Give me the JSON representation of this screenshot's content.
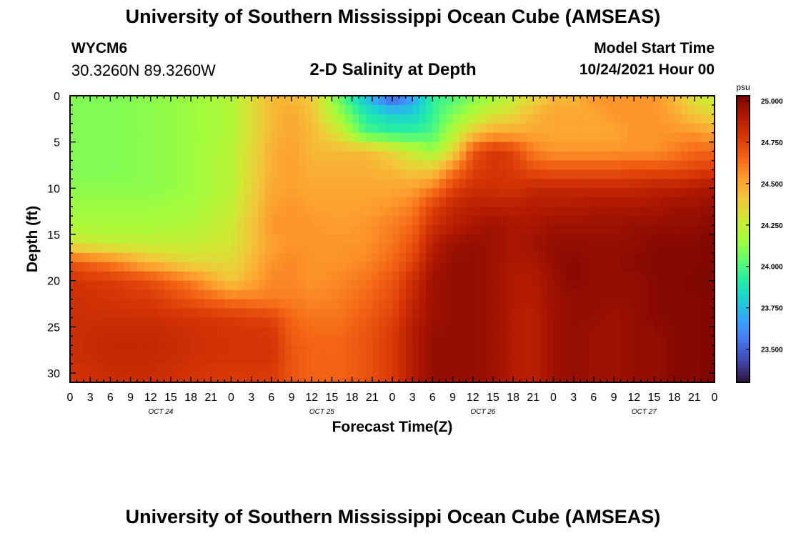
{
  "header": {
    "title": "University of Southern Mississippi Ocean Cube (AMSEAS)",
    "station": "WYCM6",
    "coordinates": "30.3260N  89.3260W",
    "plot_title": "2-D Salinity at Depth",
    "model_start_label": "Model Start Time",
    "model_start_value": "10/24/2021 Hour 00"
  },
  "footer": {
    "title": "University of Southern Mississippi Ocean Cube (AMSEAS)"
  },
  "chart_data": {
    "type": "heatmap",
    "title": "2-D Salinity at Depth",
    "xlabel": "Forecast Time(Z)",
    "ylabel": "Depth (ft)",
    "x_hours_range": [
      0,
      96
    ],
    "y_range": [
      0,
      31
    ],
    "y_ticks": [
      0,
      5,
      10,
      15,
      20,
      25,
      30
    ],
    "x_tick_labels": [
      "0",
      "3",
      "6",
      "9",
      "12",
      "15",
      "18",
      "21",
      "0",
      "3",
      "6",
      "9",
      "12",
      "15",
      "18",
      "21",
      "0",
      "3",
      "6",
      "9",
      "12",
      "15",
      "18",
      "21",
      "0",
      "3",
      "6",
      "9",
      "12",
      "15",
      "18",
      "21",
      "0"
    ],
    "day_labels": [
      "OCT 24",
      "OCT 25",
      "OCT 26",
      "OCT 27"
    ],
    "colorbar": {
      "unit": "psu",
      "min": 23.3,
      "max": 25.03,
      "tick_labels": [
        "25.000",
        "24.750",
        "24.500",
        "24.250",
        "24.000",
        "23.750",
        "23.500"
      ],
      "tick_values": [
        25.0,
        24.75,
        24.5,
        24.25,
        24.0,
        23.75,
        23.5
      ],
      "colormap": [
        "#30123b",
        "#4145ab",
        "#4675ed",
        "#39a2fc",
        "#1bcfd4",
        "#24eca6",
        "#61fc6c",
        "#a4fc3b",
        "#d1e834",
        "#f3c63a",
        "#fe9b2d",
        "#f36315",
        "#d93806",
        "#b11901",
        "#7a0402"
      ]
    },
    "time_points_hours": [
      0,
      6,
      12,
      18,
      24,
      30,
      33,
      36,
      40,
      44,
      48,
      51,
      54,
      57,
      60,
      63,
      66,
      69,
      72,
      75,
      78,
      81,
      84,
      87,
      90,
      93,
      96
    ],
    "depth_points_ft": [
      0,
      2,
      4,
      6,
      8,
      10,
      12,
      14,
      16,
      18,
      20,
      22,
      24,
      26,
      28,
      30,
      31
    ],
    "salinity_psu": [
      [
        24.1,
        24.1,
        24.12,
        24.15,
        24.2,
        24.45,
        24.45,
        24.4,
        24.05,
        23.75,
        23.45,
        23.65,
        23.95,
        24.0,
        24.1,
        24.15,
        24.25,
        24.35,
        24.45,
        24.45,
        24.55,
        24.55,
        24.55,
        24.55,
        24.45,
        24.3,
        24.25
      ],
      [
        24.1,
        24.1,
        24.12,
        24.15,
        24.2,
        24.45,
        24.5,
        24.42,
        24.15,
        23.9,
        23.8,
        23.8,
        23.95,
        24.1,
        24.2,
        24.3,
        24.35,
        24.45,
        24.5,
        24.5,
        24.5,
        24.55,
        24.55,
        24.55,
        24.5,
        24.4,
        24.35
      ],
      [
        24.1,
        24.1,
        24.12,
        24.15,
        24.2,
        24.45,
        24.5,
        24.45,
        24.3,
        24.0,
        23.95,
        23.95,
        24.0,
        24.2,
        24.4,
        24.5,
        24.5,
        24.5,
        24.5,
        24.5,
        24.5,
        24.5,
        24.55,
        24.55,
        24.55,
        24.55,
        24.5
      ],
      [
        24.1,
        24.1,
        24.12,
        24.15,
        24.22,
        24.48,
        24.52,
        24.45,
        24.45,
        24.45,
        24.35,
        24.25,
        24.15,
        24.35,
        24.7,
        24.8,
        24.75,
        24.6,
        24.55,
        24.55,
        24.55,
        24.55,
        24.55,
        24.55,
        24.6,
        24.65,
        24.65
      ],
      [
        24.1,
        24.1,
        24.12,
        24.15,
        24.22,
        24.48,
        24.52,
        24.48,
        24.48,
        24.48,
        24.45,
        24.4,
        24.4,
        24.6,
        24.75,
        24.8,
        24.78,
        24.72,
        24.7,
        24.7,
        24.7,
        24.7,
        24.72,
        24.72,
        24.72,
        24.75,
        24.78
      ],
      [
        24.12,
        24.12,
        24.12,
        24.15,
        24.22,
        24.5,
        24.52,
        24.5,
        24.5,
        24.5,
        24.5,
        24.52,
        24.6,
        24.75,
        24.82,
        24.82,
        24.8,
        24.85,
        24.85,
        24.85,
        24.85,
        24.85,
        24.85,
        24.88,
        24.88,
        24.9,
        24.92
      ],
      [
        24.15,
        24.15,
        24.15,
        24.17,
        24.25,
        24.52,
        24.55,
        24.52,
        24.52,
        24.52,
        24.55,
        24.6,
        24.75,
        24.85,
        24.88,
        24.88,
        24.88,
        24.9,
        24.9,
        24.9,
        24.92,
        24.92,
        24.92,
        24.92,
        24.95,
        24.95,
        24.97
      ],
      [
        24.18,
        24.18,
        24.18,
        24.2,
        24.28,
        24.55,
        24.55,
        24.55,
        24.52,
        24.55,
        24.6,
        24.65,
        24.82,
        24.88,
        24.92,
        24.95,
        24.92,
        24.92,
        24.95,
        24.95,
        24.95,
        24.95,
        24.97,
        24.97,
        24.97,
        24.97,
        25.0
      ],
      [
        24.3,
        24.25,
        24.25,
        24.25,
        24.3,
        24.52,
        24.55,
        24.55,
        24.55,
        24.55,
        24.62,
        24.7,
        24.88,
        24.95,
        24.97,
        24.95,
        24.92,
        24.95,
        24.97,
        24.97,
        24.97,
        24.97,
        24.97,
        25.0,
        25.0,
        25.0,
        25.02
      ],
      [
        24.7,
        24.6,
        24.45,
        24.35,
        24.35,
        24.55,
        24.58,
        24.55,
        24.55,
        24.58,
        24.65,
        24.75,
        24.92,
        24.97,
        24.97,
        24.95,
        24.92,
        24.92,
        24.97,
        25.0,
        24.97,
        24.97,
        25.0,
        25.0,
        25.0,
        25.0,
        25.02
      ],
      [
        24.8,
        24.78,
        24.72,
        24.6,
        24.4,
        24.58,
        24.58,
        24.55,
        24.58,
        24.62,
        24.7,
        24.82,
        24.95,
        24.97,
        24.97,
        24.95,
        24.9,
        24.9,
        24.95,
        25.0,
        24.97,
        24.97,
        24.97,
        25.0,
        25.0,
        25.02,
        25.02
      ],
      [
        24.82,
        24.8,
        24.78,
        24.7,
        24.62,
        24.6,
        24.6,
        24.58,
        24.6,
        24.65,
        24.72,
        24.85,
        24.95,
        24.97,
        24.97,
        24.95,
        24.9,
        24.9,
        24.95,
        24.97,
        24.97,
        24.97,
        24.97,
        25.0,
        25.0,
        25.0,
        25.02
      ],
      [
        24.82,
        24.82,
        24.82,
        24.8,
        24.78,
        24.75,
        24.65,
        24.62,
        24.62,
        24.68,
        24.75,
        24.88,
        24.95,
        24.97,
        24.97,
        24.95,
        24.9,
        24.88,
        24.95,
        24.97,
        24.97,
        24.95,
        24.97,
        25.0,
        25.0,
        25.0,
        25.02
      ],
      [
        24.82,
        24.85,
        24.85,
        24.82,
        24.8,
        24.8,
        24.68,
        24.65,
        24.65,
        24.7,
        24.78,
        24.9,
        24.97,
        24.97,
        24.97,
        24.95,
        24.9,
        24.88,
        24.95,
        24.97,
        24.95,
        24.95,
        24.97,
        24.97,
        25.0,
        25.0,
        25.02
      ],
      [
        24.82,
        24.85,
        24.85,
        24.82,
        24.8,
        24.8,
        24.7,
        24.66,
        24.66,
        24.7,
        24.78,
        24.9,
        24.97,
        24.97,
        24.97,
        24.95,
        24.9,
        24.88,
        24.95,
        24.97,
        24.95,
        24.95,
        24.97,
        24.97,
        25.0,
        25.0,
        25.02
      ],
      [
        24.8,
        24.83,
        24.83,
        24.8,
        24.78,
        24.78,
        24.7,
        24.66,
        24.66,
        24.7,
        24.78,
        24.9,
        24.97,
        24.97,
        24.97,
        24.95,
        24.9,
        24.88,
        24.95,
        24.97,
        24.95,
        24.95,
        24.97,
        24.97,
        25.0,
        25.0,
        25.03
      ],
      [
        24.8,
        24.83,
        24.83,
        24.8,
        24.78,
        24.78,
        24.7,
        24.66,
        24.66,
        24.7,
        24.78,
        24.9,
        24.97,
        24.97,
        24.97,
        24.95,
        24.9,
        24.88,
        24.95,
        24.97,
        24.95,
        24.95,
        24.97,
        24.97,
        25.0,
        25.0,
        25.03
      ]
    ]
  }
}
